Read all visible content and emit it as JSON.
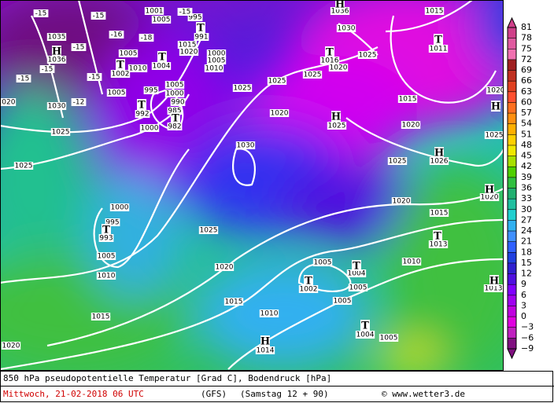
{
  "caption": "850 hPa pseudopotentielle Temperatur [Grad C], Bodendruck [hPa]",
  "date": "Mittwoch, 21-02-2018  06 UTC",
  "model": "(GFS)",
  "run": "(Samstag 12 + 90)",
  "credit": "© www.wetter3.de",
  "colorbar": {
    "ticks": [
      81,
      78,
      75,
      72,
      69,
      66,
      63,
      60,
      57,
      54,
      51,
      48,
      45,
      42,
      39,
      36,
      33,
      30,
      27,
      24,
      21,
      18,
      15,
      12,
      9,
      6,
      3,
      0,
      {
        "value": -3,
        "label": "−3"
      },
      {
        "value": -6,
        "label": "−6"
      },
      {
        "value": -9,
        "label": "−9"
      }
    ],
    "colors": [
      "#d0408a",
      "#e05aa0",
      "#f070b0",
      "#a02020",
      "#c03020",
      "#e04020",
      "#ff5030",
      "#ff7020",
      "#ff9010",
      "#ffb000",
      "#ffd000",
      "#f0e800",
      "#a8e000",
      "#50d000",
      "#30c040",
      "#20b070",
      "#20c0a0",
      "#20d0d0",
      "#30b0f0",
      "#4090ff",
      "#3060ff",
      "#2040e0",
      "#3020d0",
      "#5010e0",
      "#8000ff",
      "#a000f0",
      "#c000e0",
      "#e000e0",
      "#c020c0",
      "#801080"
    ]
  },
  "pressure_labels": [
    "1005",
    "995",
    "991",
    "1001",
    "1035",
    "1036",
    "1015",
    "1020",
    "1000",
    "1005",
    "1010",
    "1005",
    "1010",
    "1002",
    "1004",
    "1005",
    "995",
    "992",
    "1005",
    "1000",
    "990",
    "985",
    "982",
    "1000",
    "1030",
    "1025",
    "1020",
    "1025",
    "1030",
    "1036",
    "1015",
    "1011",
    "1016",
    "1020",
    "1025",
    "1025",
    "1025",
    "1025",
    "1020",
    "1015",
    "1020",
    "1025",
    "1030",
    "1025",
    "1026",
    "1020",
    "1015",
    "1013",
    "1020",
    "1000",
    "995",
    "993",
    "1005",
    "1010",
    "1025",
    "1020",
    "1005",
    "1010",
    "1004",
    "1005",
    "1002",
    "1015",
    "1010",
    "1005",
    "1015",
    "1020",
    "1004",
    "1005",
    "1014",
    "1013",
    "1025",
    "1020"
  ],
  "temperature_labels": [
    "-15",
    "-15",
    "-16",
    "-18",
    "-15",
    "-15",
    "-15",
    "-12",
    "-15",
    "-15"
  ],
  "centers": [
    "H",
    "H",
    "H",
    "H",
    "H",
    "H",
    "H",
    "H",
    "T",
    "T",
    "T",
    "T",
    "T",
    "T",
    "T",
    "T",
    "T",
    "T",
    "T",
    "T"
  ]
}
